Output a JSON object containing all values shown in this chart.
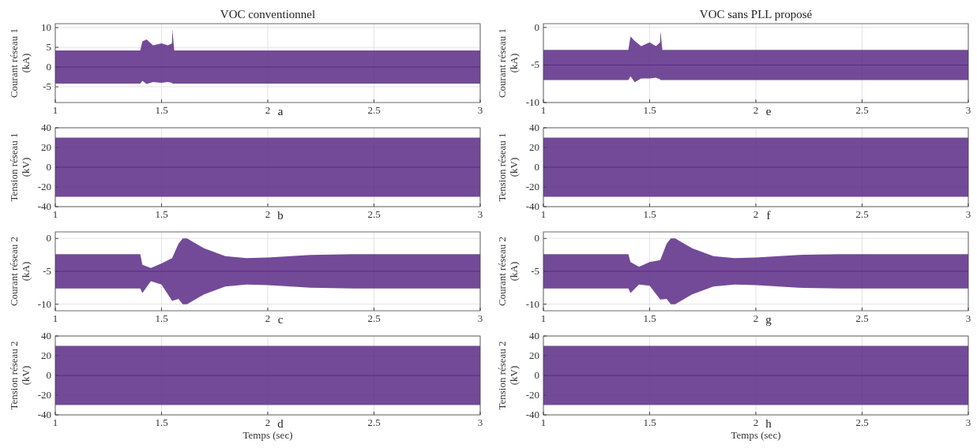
{
  "chart_data": [
    {
      "type": "line",
      "title": "VOC conventionnel",
      "ylabel": "Courant réseau 1 (kA)",
      "annotations": [
        "a"
      ],
      "xlim": [
        1,
        3
      ],
      "xticks": [
        1,
        1.5,
        2,
        2.5,
        3
      ],
      "ylim": [
        -9,
        11
      ],
      "yticks": [
        -5,
        0,
        5,
        10
      ],
      "grid": true,
      "series": [
        {
          "color": "#5b2a86",
          "x": [
            1,
            1.4,
            1.41,
            1.43,
            1.46,
            1.5,
            1.53,
            1.549,
            1.551,
            1.56,
            3
          ],
          "values": [
            0,
            0,
            0,
            0,
            0,
            0,
            0,
            0,
            0,
            0,
            0
          ],
          "upper": [
            4.2,
            4.2,
            6.5,
            7,
            5.5,
            6,
            5.5,
            6,
            9.5,
            4.2,
            4.2
          ],
          "lower": [
            -4.2,
            -4.2,
            -3.5,
            -4.3,
            -3.8,
            -4,
            -3.8,
            -4,
            -4.2,
            -4.2,
            -4.2
          ]
        }
      ]
    },
    {
      "type": "line",
      "ylabel": "Tension réseau 1 (kV)",
      "annotations": [
        "b"
      ],
      "xlim": [
        1,
        3
      ],
      "xticks": [
        1,
        1.5,
        2,
        2.5,
        3
      ],
      "ylim": [
        -40,
        40
      ],
      "yticks": [
        -40,
        -20,
        0,
        20,
        40
      ],
      "grid": true,
      "series": [
        {
          "color": "#5b2a86",
          "x": [
            1,
            3
          ],
          "values": [
            0,
            0
          ],
          "upper": [
            30,
            30
          ],
          "lower": [
            -30,
            -30
          ]
        }
      ]
    },
    {
      "type": "line",
      "ylabel": "Courant réseau 2 (kA)",
      "annotations": [
        "c"
      ],
      "xlim": [
        1,
        3
      ],
      "xticks": [
        1,
        1.5,
        2,
        2.5,
        3
      ],
      "ylim": [
        -11,
        1
      ],
      "yticks": [
        -10,
        -5,
        0
      ],
      "grid": true,
      "series": [
        {
          "color": "#5b2a86",
          "x": [
            1,
            1.4,
            1.41,
            1.45,
            1.5,
            1.55,
            1.58,
            1.6,
            1.62,
            1.7,
            1.8,
            1.9,
            2,
            2.2,
            2.4,
            3
          ],
          "values": [
            -5,
            -5,
            -5,
            -5,
            -5,
            -5,
            -5,
            -5,
            -5,
            -5,
            -5,
            -5,
            -5,
            -5,
            -5,
            -5
          ],
          "upper": [
            -2.4,
            -2.4,
            -4,
            -4.5,
            -3.8,
            -3,
            -0.8,
            0,
            0,
            -1.5,
            -2.7,
            -3,
            -2.9,
            -2.5,
            -2.4,
            -2.4
          ],
          "lower": [
            -7.6,
            -7.6,
            -8.3,
            -6.5,
            -7,
            -9.5,
            -9.2,
            -10,
            -10,
            -8.5,
            -7.3,
            -7,
            -7.1,
            -7.5,
            -7.6,
            -7.6
          ]
        }
      ]
    },
    {
      "type": "line",
      "ylabel": "Tension réseau 2 (kV)",
      "xlabel": "Temps (sec)",
      "annotations": [
        "d"
      ],
      "xlim": [
        1,
        3
      ],
      "xticks": [
        1,
        1.5,
        2,
        2.5,
        3
      ],
      "ylim": [
        -40,
        40
      ],
      "yticks": [
        -40,
        -20,
        0,
        20,
        40
      ],
      "grid": true,
      "series": [
        {
          "color": "#5b2a86",
          "x": [
            1,
            3
          ],
          "values": [
            0,
            0
          ],
          "upper": [
            30,
            30
          ],
          "lower": [
            -30,
            -30
          ]
        }
      ]
    },
    {
      "type": "line",
      "title": "VOC sans PLL proposé",
      "ylabel": "Courant réseau 1 (kA)",
      "annotations": [
        "e"
      ],
      "xlim": [
        1,
        3
      ],
      "xticks": [
        1,
        1.5,
        2,
        2.5,
        3
      ],
      "ylim": [
        -10,
        0.5
      ],
      "yticks": [
        -10,
        -5,
        0
      ],
      "grid": true,
      "series": [
        {
          "color": "#5b2a86",
          "x": [
            1,
            1.4,
            1.41,
            1.43,
            1.46,
            1.5,
            1.53,
            1.549,
            1.551,
            1.56,
            3
          ],
          "values": [
            -5,
            -5,
            -5,
            -5,
            -5,
            -5,
            -5,
            -5,
            -5,
            -5,
            -5
          ],
          "upper": [
            -3,
            -3,
            -1.2,
            -1.8,
            -2.5,
            -2,
            -2.5,
            -2,
            -0.5,
            -3,
            -3
          ],
          "lower": [
            -7,
            -7,
            -6.5,
            -7.3,
            -6.8,
            -6.8,
            -6.7,
            -6.9,
            -7,
            -7,
            -7
          ]
        }
      ]
    },
    {
      "type": "line",
      "ylabel": "Tension réseau 1 (kV)",
      "annotations": [
        "f"
      ],
      "xlim": [
        1,
        3
      ],
      "xticks": [
        1,
        1.5,
        2,
        2.5,
        3
      ],
      "ylim": [
        -40,
        40
      ],
      "yticks": [
        -40,
        -20,
        0,
        20,
        40
      ],
      "grid": true,
      "series": [
        {
          "color": "#5b2a86",
          "x": [
            1,
            3
          ],
          "values": [
            0,
            0
          ],
          "upper": [
            30,
            30
          ],
          "lower": [
            -30,
            -30
          ]
        }
      ]
    },
    {
      "type": "line",
      "ylabel": "Courant réseau 2 (kA)",
      "annotations": [
        "g"
      ],
      "xlim": [
        1,
        3
      ],
      "xticks": [
        1,
        1.5,
        2,
        2.5,
        3
      ],
      "ylim": [
        -11,
        1
      ],
      "yticks": [
        -10,
        -5,
        0
      ],
      "grid": true,
      "series": [
        {
          "color": "#5b2a86",
          "x": [
            1,
            1.4,
            1.41,
            1.45,
            1.5,
            1.55,
            1.58,
            1.6,
            1.62,
            1.7,
            1.8,
            1.9,
            2,
            2.2,
            2.4,
            3
          ],
          "values": [
            -5,
            -5,
            -5,
            -5,
            -5,
            -5,
            -5,
            -5,
            -5,
            -5,
            -5,
            -5,
            -5,
            -5,
            -5,
            -5
          ],
          "upper": [
            -2.4,
            -2.4,
            -3.6,
            -4.3,
            -3.6,
            -3.3,
            -0.8,
            0,
            0,
            -1.5,
            -2.7,
            -3,
            -2.9,
            -2.5,
            -2.4,
            -2.4
          ],
          "lower": [
            -7.6,
            -7.6,
            -8.3,
            -7,
            -7.2,
            -9.3,
            -9.2,
            -10,
            -10,
            -8.5,
            -7.3,
            -7,
            -7.1,
            -7.5,
            -7.6,
            -7.6
          ]
        }
      ]
    },
    {
      "type": "line",
      "ylabel": "Tension réseau 2 (kV)",
      "xlabel": "Temps (sec)",
      "annotations": [
        "h"
      ],
      "xlim": [
        1,
        3
      ],
      "xticks": [
        1,
        1.5,
        2,
        2.5,
        3
      ],
      "ylim": [
        -40,
        40
      ],
      "yticks": [
        -40,
        -20,
        0,
        20,
        40
      ],
      "grid": true,
      "series": [
        {
          "color": "#5b2a86",
          "x": [
            1,
            3
          ],
          "values": [
            0,
            0
          ],
          "upper": [
            30,
            30
          ],
          "lower": [
            -30,
            -30
          ]
        }
      ]
    }
  ]
}
